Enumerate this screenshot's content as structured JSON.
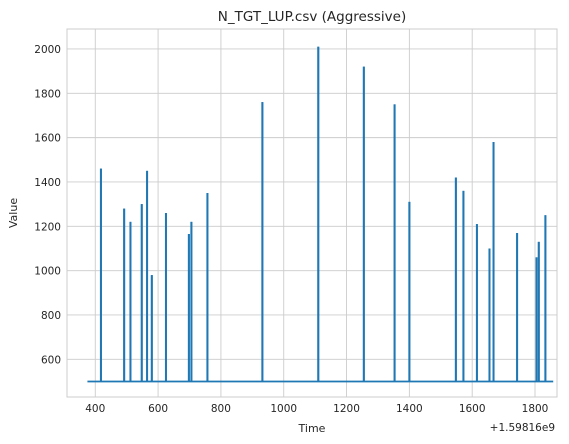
{
  "chart_data": {
    "type": "line",
    "title": "N_TGT_LUP.csv (Aggressive)",
    "xlabel": "Time",
    "ylabel": "Value",
    "x_offset_label": "+1.59816e9",
    "xlim": [
      310,
      1870
    ],
    "ylim": [
      430,
      2090
    ],
    "x_ticks": [
      400,
      600,
      800,
      1000,
      1200,
      1400,
      1600,
      1800
    ],
    "y_ticks": [
      600,
      800,
      1000,
      1200,
      1400,
      1600,
      1800,
      2000
    ],
    "grid": true,
    "line_color": "#1f77b4",
    "baseline": 500,
    "x_start": 375,
    "x_end": 1858,
    "spikes": [
      {
        "x": 418,
        "y": 1460
      },
      {
        "x": 492,
        "y": 1280
      },
      {
        "x": 512,
        "y": 1220
      },
      {
        "x": 548,
        "y": 1300
      },
      {
        "x": 565,
        "y": 1450
      },
      {
        "x": 580,
        "y": 980
      },
      {
        "x": 625,
        "y": 1260
      },
      {
        "x": 698,
        "y": 1165
      },
      {
        "x": 706,
        "y": 1220
      },
      {
        "x": 757,
        "y": 1350
      },
      {
        "x": 932,
        "y": 1760
      },
      {
        "x": 1110,
        "y": 2010
      },
      {
        "x": 1255,
        "y": 1920
      },
      {
        "x": 1353,
        "y": 1750
      },
      {
        "x": 1400,
        "y": 1310
      },
      {
        "x": 1548,
        "y": 1420
      },
      {
        "x": 1572,
        "y": 1360
      },
      {
        "x": 1615,
        "y": 1210
      },
      {
        "x": 1655,
        "y": 1100
      },
      {
        "x": 1668,
        "y": 1580
      },
      {
        "x": 1743,
        "y": 1170
      },
      {
        "x": 1805,
        "y": 1060
      },
      {
        "x": 1812,
        "y": 1130
      },
      {
        "x": 1833,
        "y": 1250
      }
    ]
  }
}
